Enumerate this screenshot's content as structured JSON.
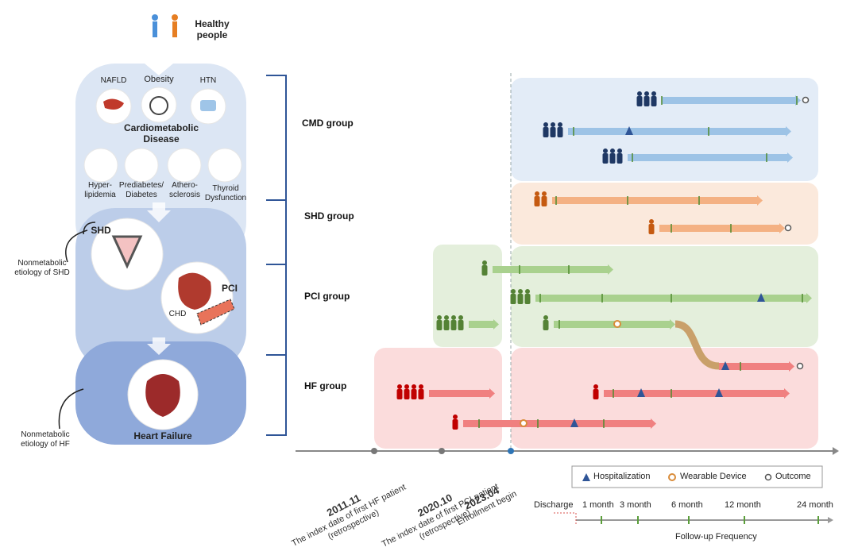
{
  "left_panel": {
    "healthy": "Healthy people",
    "conditions_top": [
      "NAFLD",
      "Obesity",
      "HTN"
    ],
    "cardiometabolic": "Cardiometabolic Disease",
    "conditions_bottom": [
      "Hyper- lipidemia",
      "Prediabetes/ Diabetes",
      "Athero- sclerosis",
      "Thyroid Dysfunction"
    ],
    "shd": "SHD",
    "shd_note": "Nonmetabolic etiology of SHD",
    "chd": "CHD",
    "pci": "PCI",
    "hf": "Heart Failure",
    "hf_note": "Nonmetabolic etiology of HF"
  },
  "groups": [
    "CMD group",
    "SHD group",
    "PCI group",
    "HF group"
  ],
  "timeline": [
    {
      "date": "2011.11",
      "label": "The index date of first HF patient (retrospective)"
    },
    {
      "date": "2020.10",
      "label": "The index date of first PCI patient (retrospective)"
    },
    {
      "date": "2023.04",
      "label": "Enrollment begin"
    }
  ],
  "legend": [
    "Hospitalization",
    "Wearable Device",
    "Outcome"
  ],
  "follow_up": {
    "start": "Discharge",
    "ticks": [
      "1 month",
      "3 month",
      "6 month",
      "12 month",
      "24 month"
    ],
    "title": "Follow-up Frequency"
  }
}
